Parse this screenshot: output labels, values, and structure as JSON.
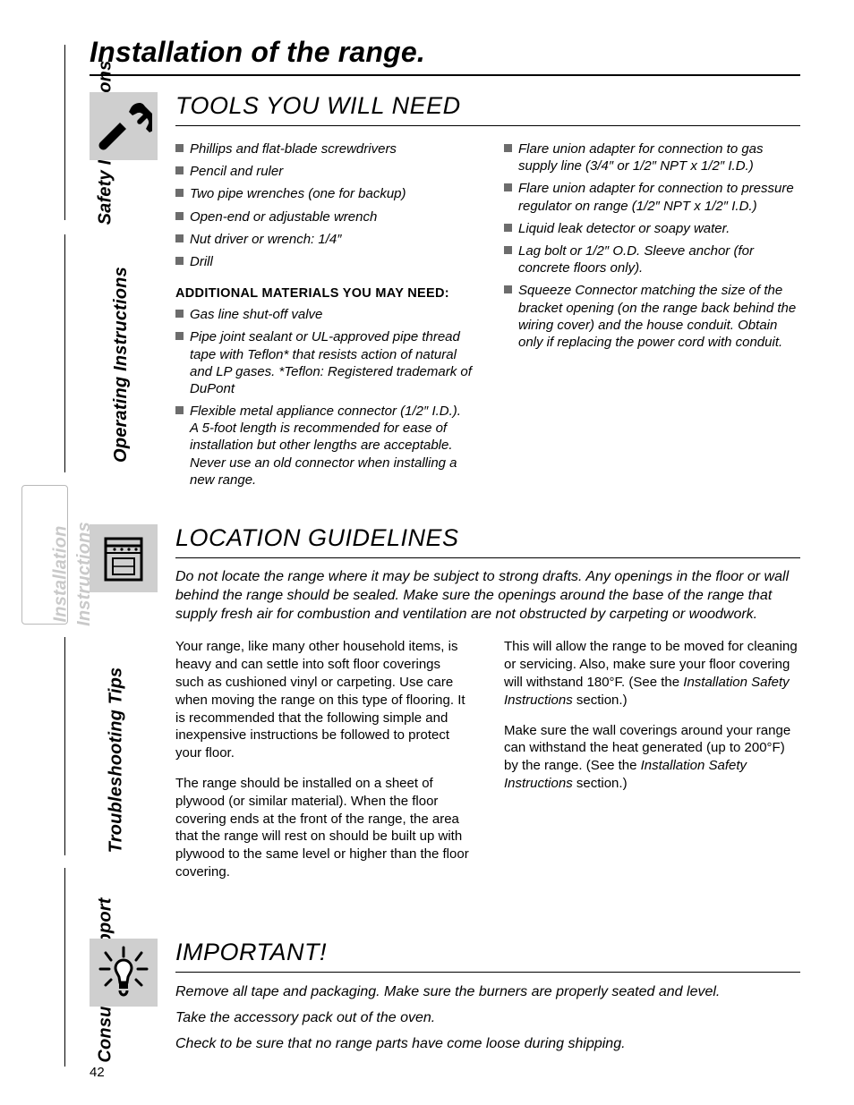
{
  "page_number": "42",
  "page_title": "Installation of the range.",
  "tabs": {
    "safety": "Safety Instructions",
    "operating": "Operating Instructions",
    "installation_line1": "Installation",
    "installation_line2": "Instructions",
    "troubleshoot": "Troubleshooting Tips",
    "consumer": "Consumer Support"
  },
  "tools": {
    "title": "TOOLS YOU WILL NEED",
    "left_items": [
      "Phillips and flat-blade screwdrivers",
      "Pencil and ruler",
      "Two pipe wrenches (one for backup)",
      "Open-end or adjustable wrench",
      "Nut driver or wrench: 1/4″",
      "Drill"
    ],
    "subhead": "ADDITIONAL MATERIALS YOU MAY NEED:",
    "left_items2": [
      "Gas line shut-off valve",
      "Pipe joint sealant or UL-approved pipe thread tape with Teflon* that resists action of natural and LP gases. *Teflon: Registered trademark of DuPont",
      "Flexible metal appliance connector (1/2″ I.D.). A 5-foot length is recommended for ease of installation but other lengths are acceptable. Never use an old connector when installing a new range."
    ],
    "right_items": [
      "Flare union adapter for connection to gas supply line (3/4″ or 1/2″ NPT x 1/2″ I.D.)",
      "Flare union adapter for connection to pressure regulator on range (1/2″ NPT x 1/2″ I.D.)",
      "Liquid leak detector or soapy water.",
      "Lag bolt or 1/2″ O.D. Sleeve anchor (for concrete floors only).",
      "Squeeze Connector matching the size of the bracket opening (on the range back behind the wiring cover) and the house conduit. Obtain only if replacing the power cord with conduit."
    ]
  },
  "location": {
    "title": "LOCATION GUIDELINES",
    "intro": "Do not locate the range where it may be subject to strong drafts. Any openings in the floor or wall behind the range should be sealed. Make sure the openings around the base of the range that supply fresh air for combustion and ventilation are not obstructed by carpeting or woodwork.",
    "left_paras": [
      "Your range, like many other household items, is heavy and can settle into soft floor coverings such as cushioned vinyl or carpeting. Use care when moving the range on this type of flooring. It is recommended that the following simple and inexpensive instructions be followed to protect your floor.",
      "The range should be installed on a sheet of plywood (or similar material). When the floor covering ends at the front of the range, the area that the range will rest on should be built up with plywood to the same level or higher than the floor covering."
    ],
    "right_para1_a": "This will allow the range to be moved for cleaning or servicing. Also, make sure your floor covering will withstand 180°F. (See the ",
    "right_para1_ital": "Installation Safety Instructions",
    "right_para1_b": " section.)",
    "right_para2_a": "Make sure the wall coverings around your range can withstand the heat generated (up to 200°F) by the range. (See the ",
    "right_para2_ital": "Installation Safety Instructions",
    "right_para2_b": " section.)"
  },
  "important": {
    "title": "IMPORTANT!",
    "lines": [
      "Remove all tape and packaging. Make sure the burners are properly seated and level.",
      "Take the accessory pack out of the oven.",
      "Check to be sure that no range parts have come loose during shipping."
    ]
  }
}
